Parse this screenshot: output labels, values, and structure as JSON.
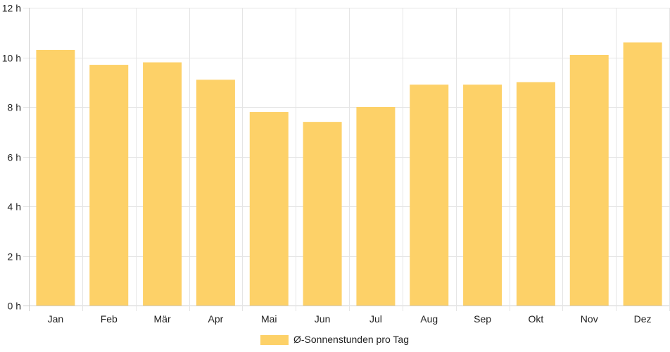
{
  "chart_data": {
    "type": "bar",
    "categories": [
      "Jan",
      "Feb",
      "Mär",
      "Apr",
      "Mai",
      "Jun",
      "Jul",
      "Aug",
      "Sep",
      "Okt",
      "Nov",
      "Dez"
    ],
    "series": [
      {
        "name": "Ø-Sonnenstunden pro Tag",
        "values": [
          10.3,
          9.7,
          9.8,
          9.1,
          7.8,
          7.4,
          8.0,
          8.9,
          8.9,
          9.0,
          10.1,
          10.6
        ],
        "color": "#fdd168"
      }
    ],
    "ylim": [
      0,
      12
    ],
    "yticks": [
      "0 h",
      "2 h",
      "4 h",
      "6 h",
      "8 h",
      "10 h",
      "12 h"
    ],
    "grid": true,
    "legend_position": "bottom"
  }
}
